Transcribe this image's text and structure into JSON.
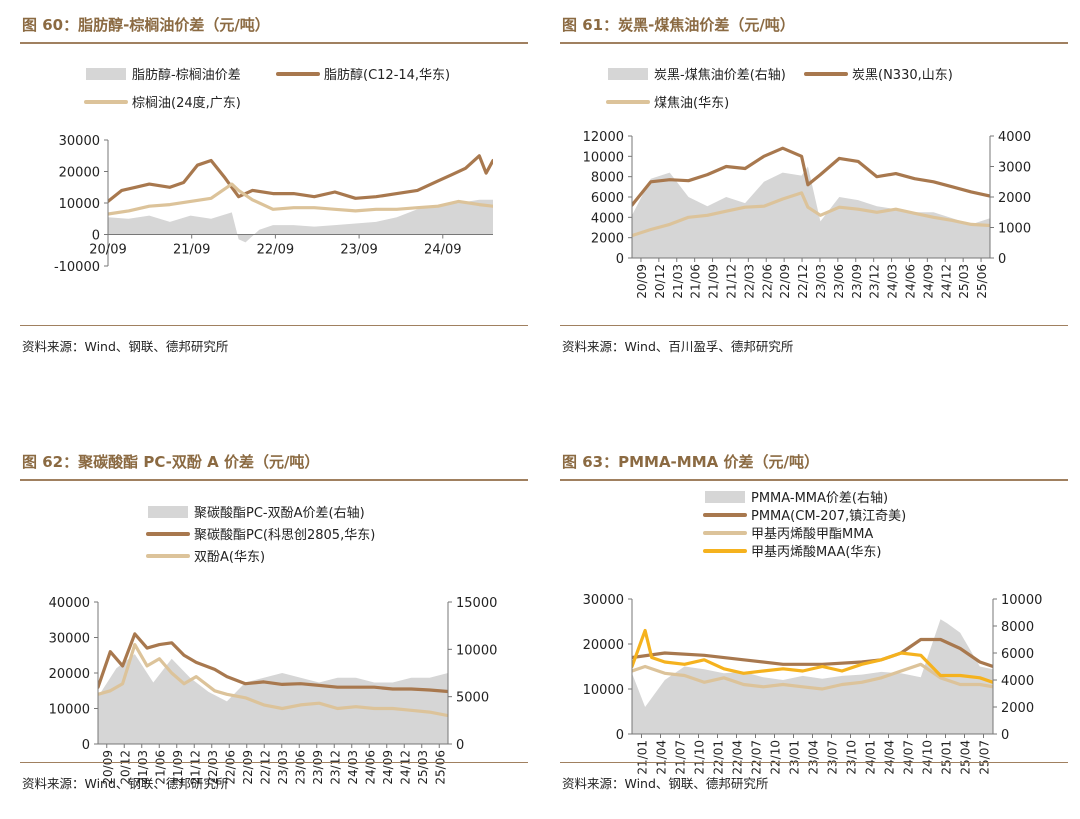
{
  "colors": {
    "title": "#8b6a42",
    "spread": "#d6d6d6",
    "brown": "#a8784e",
    "tan": "#dcc39a",
    "yellow": "#f5b21e"
  },
  "chart_data": [
    {
      "id": "p60",
      "type": "line",
      "title": "图 60：脂肪醇-棕榈油价差（元/吨）",
      "source": "资料来源：Wind、钢联、德邦研究所",
      "x_ticks": [
        "20/09",
        "21/09",
        "22/09",
        "23/09",
        "24/09"
      ],
      "x_range": [
        "2020-09",
        "2025-05"
      ],
      "ylim": [
        -10000,
        30000
      ],
      "y_ticks": [
        "30000",
        "20000",
        "10000",
        "0",
        "-10000"
      ],
      "x_labels_rotated": false,
      "legend_rows": [
        [
          0,
          1
        ],
        [
          2
        ]
      ],
      "series": [
        {
          "name": "脂肪醇-棕榈油价差",
          "kind": "area",
          "axis": "left",
          "color": "#d6d6d6",
          "x": [
            "2020-09",
            "2020-12",
            "2021-03",
            "2021-06",
            "2021-09",
            "2021-12",
            "2022-03",
            "2022-04",
            "2022-05",
            "2022-07",
            "2022-09",
            "2022-12",
            "2023-03",
            "2023-06",
            "2023-09",
            "2023-12",
            "2024-03",
            "2024-06",
            "2024-09",
            "2024-12",
            "2025-03",
            "2025-05"
          ],
          "values": [
            5500,
            5000,
            6000,
            4000,
            6000,
            5000,
            7000,
            -1500,
            -2500,
            1500,
            3000,
            3000,
            2500,
            3000,
            3500,
            4000,
            5500,
            8000,
            9000,
            10000,
            11000,
            11000
          ]
        },
        {
          "name": "脂肪醇(C12-14,华东)",
          "kind": "line",
          "axis": "left",
          "color": "#a8784e",
          "x": [
            "2020-09",
            "2020-11",
            "2021-01",
            "2021-03",
            "2021-06",
            "2021-08",
            "2021-10",
            "2021-12",
            "2022-02",
            "2022-04",
            "2022-06",
            "2022-09",
            "2022-12",
            "2023-03",
            "2023-06",
            "2023-09",
            "2023-12",
            "2024-03",
            "2024-06",
            "2024-09",
            "2024-11",
            "2025-01",
            "2025-03",
            "2025-04",
            "2025-05"
          ],
          "values": [
            10500,
            14000,
            15000,
            16000,
            15000,
            16500,
            22000,
            23500,
            18000,
            12000,
            14000,
            13000,
            13000,
            12000,
            13500,
            11500,
            12000,
            13000,
            14000,
            17000,
            19000,
            21000,
            25000,
            19500,
            23500
          ]
        },
        {
          "name": "棕榈油(24度,广东)",
          "kind": "line",
          "axis": "left",
          "color": "#dcc39a",
          "x": [
            "2020-09",
            "2020-12",
            "2021-03",
            "2021-06",
            "2021-09",
            "2021-12",
            "2022-03",
            "2022-04",
            "2022-06",
            "2022-09",
            "2022-12",
            "2023-03",
            "2023-06",
            "2023-09",
            "2023-12",
            "2024-03",
            "2024-06",
            "2024-09",
            "2024-12",
            "2025-03",
            "2025-05"
          ],
          "values": [
            6500,
            7500,
            9000,
            9500,
            10500,
            11500,
            16000,
            14000,
            11000,
            8000,
            8500,
            8500,
            8000,
            7500,
            8000,
            8000,
            8500,
            9000,
            10500,
            9500,
            9000
          ]
        }
      ]
    },
    {
      "id": "p61",
      "type": "line",
      "title": "图 61：炭黑-煤焦油价差（元/吨）",
      "source": "资料来源：Wind、百川盈孚、德邦研究所",
      "x_ticks": [
        "20/09",
        "20/12",
        "21/03",
        "21/06",
        "21/09",
        "21/12",
        "22/03",
        "22/06",
        "22/09",
        "22/12",
        "23/03",
        "23/06",
        "23/09",
        "23/12",
        "24/03",
        "24/06",
        "24/09",
        "24/12",
        "25/03",
        "25/06"
      ],
      "x_range": [
        "2020-09",
        "2025-06"
      ],
      "ylim": [
        0,
        12000
      ],
      "y_ticks": [
        "12000",
        "10000",
        "8000",
        "6000",
        "4000",
        "2000",
        "0"
      ],
      "y2lim": [
        0,
        4000
      ],
      "y2_ticks": [
        "4000",
        "3000",
        "2000",
        "1000",
        "0"
      ],
      "x_labels_rotated": true,
      "legend_rows": [
        [
          0,
          1
        ],
        [
          2
        ]
      ],
      "series": [
        {
          "name": "炭黑-煤焦油价差(右轴)",
          "kind": "area",
          "axis": "right",
          "color": "#d6d6d6",
          "x": [
            "2020-09",
            "2020-12",
            "2021-03",
            "2021-06",
            "2021-09",
            "2021-12",
            "2022-03",
            "2022-06",
            "2022-09",
            "2022-12",
            "2023-01",
            "2023-03",
            "2023-06",
            "2023-09",
            "2023-12",
            "2024-03",
            "2024-06",
            "2024-09",
            "2024-12",
            "2025-03",
            "2025-06"
          ],
          "values": [
            1400,
            2600,
            2800,
            2000,
            1700,
            2000,
            1800,
            2500,
            2800,
            2700,
            3000,
            1200,
            2000,
            1900,
            1700,
            1600,
            1500,
            1500,
            1300,
            1100,
            1300
          ]
        },
        {
          "name": "炭黑(N330,山东)",
          "kind": "line",
          "axis": "left",
          "color": "#a8784e",
          "x": [
            "2020-09",
            "2020-12",
            "2021-03",
            "2021-06",
            "2021-09",
            "2021-12",
            "2022-03",
            "2022-06",
            "2022-09",
            "2022-12",
            "2023-01",
            "2023-03",
            "2023-06",
            "2023-09",
            "2023-12",
            "2024-03",
            "2024-06",
            "2024-09",
            "2024-12",
            "2025-03",
            "2025-06"
          ],
          "values": [
            5200,
            7500,
            7700,
            7600,
            8200,
            9000,
            8800,
            10000,
            10800,
            10000,
            7200,
            8200,
            9800,
            9500,
            8000,
            8300,
            7800,
            7500,
            7000,
            6500,
            6100
          ]
        },
        {
          "name": "煤焦油(华东)",
          "kind": "line",
          "axis": "left",
          "color": "#dcc39a",
          "x": [
            "2020-09",
            "2020-12",
            "2021-03",
            "2021-06",
            "2021-09",
            "2021-12",
            "2022-03",
            "2022-06",
            "2022-09",
            "2022-12",
            "2023-01",
            "2023-03",
            "2023-06",
            "2023-09",
            "2023-12",
            "2024-03",
            "2024-06",
            "2024-09",
            "2024-12",
            "2025-03",
            "2025-06"
          ],
          "values": [
            2200,
            2800,
            3300,
            4000,
            4200,
            4600,
            5000,
            5100,
            5800,
            6400,
            5000,
            4200,
            5000,
            4800,
            4500,
            4800,
            4400,
            4000,
            3700,
            3300,
            3200
          ]
        }
      ]
    },
    {
      "id": "p62",
      "type": "line",
      "title": "图 62：聚碳酸酯 PC-双酚 A 价差（元/吨）",
      "source": "资料来源：Wind、钢联、德邦研究所",
      "x_ticks": [
        "20/09",
        "20/12",
        "21/03",
        "21/06",
        "21/09",
        "21/12",
        "22/03",
        "22/06",
        "22/09",
        "22/12",
        "23/03",
        "23/06",
        "23/09",
        "23/12",
        "24/03",
        "24/06",
        "24/09",
        "24/12",
        "25/03",
        "25/06"
      ],
      "x_range": [
        "2020-09",
        "2025-06"
      ],
      "ylim": [
        0,
        40000
      ],
      "y_ticks": [
        "40000",
        "30000",
        "20000",
        "10000",
        "0"
      ],
      "y2lim": [
        0,
        15000
      ],
      "y2_ticks": [
        "15000",
        "10000",
        "5000",
        "0"
      ],
      "x_labels_rotated": true,
      "legend_rows": [
        [
          0
        ],
        [
          1
        ],
        [
          2
        ]
      ],
      "series": [
        {
          "name": "聚碳酸酯PC-双酚A价差(右轴)",
          "kind": "area",
          "axis": "right",
          "color": "#d6d6d6",
          "x": [
            "2020-09",
            "2020-12",
            "2021-03",
            "2021-06",
            "2021-09",
            "2021-12",
            "2022-03",
            "2022-06",
            "2022-09",
            "2022-12",
            "2023-03",
            "2023-06",
            "2023-09",
            "2023-12",
            "2024-03",
            "2024-06",
            "2024-09",
            "2024-12",
            "2025-03",
            "2025-06"
          ],
          "values": [
            5000,
            8000,
            9500,
            6500,
            9000,
            7000,
            5500,
            4500,
            6500,
            7000,
            7500,
            7000,
            6500,
            7000,
            7000,
            6500,
            6500,
            7000,
            7000,
            7500
          ]
        },
        {
          "name": "聚碳酸酯PC(科思创2805,华东)",
          "kind": "line",
          "axis": "left",
          "color": "#a8784e",
          "x": [
            "2020-09",
            "2020-11",
            "2021-01",
            "2021-03",
            "2021-05",
            "2021-07",
            "2021-09",
            "2021-11",
            "2022-01",
            "2022-04",
            "2022-06",
            "2022-09",
            "2022-12",
            "2023-03",
            "2023-06",
            "2023-09",
            "2023-12",
            "2024-03",
            "2024-06",
            "2024-09",
            "2024-12",
            "2025-03",
            "2025-06"
          ],
          "values": [
            16000,
            26000,
            22000,
            31000,
            27000,
            28000,
            28500,
            25000,
            23000,
            21000,
            19000,
            17000,
            17500,
            16800,
            17000,
            16500,
            16000,
            16000,
            16000,
            15500,
            15500,
            15200,
            14800
          ]
        },
        {
          "name": "双酚A(华东)",
          "kind": "line",
          "axis": "left",
          "color": "#dcc39a",
          "x": [
            "2020-09",
            "2020-11",
            "2021-01",
            "2021-03",
            "2021-05",
            "2021-07",
            "2021-09",
            "2021-11",
            "2022-01",
            "2022-04",
            "2022-06",
            "2022-09",
            "2022-12",
            "2023-03",
            "2023-06",
            "2023-09",
            "2023-12",
            "2024-03",
            "2024-06",
            "2024-09",
            "2024-12",
            "2025-03",
            "2025-06"
          ],
          "values": [
            14000,
            15000,
            17000,
            28000,
            22000,
            24000,
            20000,
            17000,
            19000,
            15000,
            14000,
            13000,
            11000,
            10000,
            11000,
            11500,
            10000,
            10500,
            10000,
            10000,
            9500,
            9000,
            8000
          ]
        }
      ]
    },
    {
      "id": "p63",
      "type": "line",
      "title": "图 63：PMMA-MMA 价差（元/吨）",
      "source": "资料来源：Wind、钢联、德邦研究所",
      "x_ticks": [
        "21/01",
        "21/04",
        "21/07",
        "21/10",
        "22/01",
        "22/04",
        "22/07",
        "22/10",
        "23/01",
        "23/04",
        "23/07",
        "23/10",
        "24/01",
        "24/04",
        "24/07",
        "24/10",
        "25/01",
        "25/04",
        "25/07"
      ],
      "x_range": [
        "2021-01",
        "2025-08"
      ],
      "ylim": [
        0,
        30000
      ],
      "y_ticks": [
        "30000",
        "20000",
        "10000",
        "0"
      ],
      "y2lim": [
        0,
        10000
      ],
      "y2_ticks": [
        "10000",
        "8000",
        "6000",
        "4000",
        "2000",
        "0"
      ],
      "x_labels_rotated": true,
      "legend_rows": [
        [
          0
        ],
        [
          1
        ],
        [
          2
        ],
        [
          3
        ]
      ],
      "series": [
        {
          "name": "PMMA-MMA价差(右轴)",
          "kind": "area",
          "axis": "right",
          "color": "#d6d6d6",
          "x": [
            "2021-01",
            "2021-03",
            "2021-06",
            "2021-09",
            "2021-12",
            "2022-03",
            "2022-06",
            "2022-09",
            "2022-12",
            "2023-03",
            "2023-06",
            "2023-09",
            "2023-12",
            "2024-03",
            "2024-06",
            "2024-09",
            "2024-12",
            "2025-01",
            "2025-03",
            "2025-06",
            "2025-08"
          ],
          "values": [
            4500,
            2000,
            4000,
            5000,
            4800,
            4500,
            4600,
            4200,
            4000,
            4300,
            4100,
            4300,
            4400,
            4600,
            4500,
            4200,
            8500,
            8200,
            7500,
            5000,
            4800
          ]
        },
        {
          "name": "PMMA(CM-207,镇江奇美)",
          "kind": "line",
          "axis": "left",
          "color": "#a8784e",
          "x": [
            "2021-01",
            "2021-06",
            "2021-12",
            "2022-06",
            "2022-12",
            "2023-06",
            "2023-12",
            "2024-03",
            "2024-06",
            "2024-09",
            "2024-12",
            "2025-03",
            "2025-06",
            "2025-08"
          ],
          "values": [
            17000,
            18000,
            17500,
            16500,
            15500,
            15500,
            16000,
            16500,
            18000,
            21000,
            21000,
            19000,
            16000,
            15000
          ]
        },
        {
          "name": "甲基丙烯酸甲酯MMA",
          "kind": "line",
          "axis": "left",
          "color": "#dcc39a",
          "x": [
            "2021-01",
            "2021-03",
            "2021-06",
            "2021-09",
            "2021-12",
            "2022-03",
            "2022-06",
            "2022-09",
            "2022-12",
            "2023-03",
            "2023-06",
            "2023-09",
            "2023-12",
            "2024-03",
            "2024-06",
            "2024-09",
            "2024-12",
            "2025-03",
            "2025-06",
            "2025-08"
          ],
          "values": [
            14000,
            15000,
            13500,
            13000,
            11500,
            12500,
            11000,
            10500,
            11000,
            10500,
            10000,
            11000,
            11500,
            12500,
            14000,
            15500,
            12500,
            11000,
            11000,
            10500
          ]
        },
        {
          "name": "甲基丙烯酸MAA(华东)",
          "kind": "line",
          "axis": "left",
          "color": "#f5b21e",
          "x": [
            "2021-01",
            "2021-03",
            "2021-04",
            "2021-06",
            "2021-09",
            "2021-12",
            "2022-03",
            "2022-06",
            "2022-09",
            "2022-12",
            "2023-03",
            "2023-06",
            "2023-09",
            "2023-12",
            "2024-03",
            "2024-06",
            "2024-09",
            "2024-12",
            "2025-03",
            "2025-06",
            "2025-08"
          ],
          "values": [
            15000,
            23000,
            17000,
            16000,
            15500,
            16500,
            14500,
            13500,
            14000,
            14500,
            14000,
            15000,
            14000,
            15500,
            16500,
            18000,
            17500,
            13000,
            13000,
            12500,
            11500
          ]
        }
      ]
    }
  ]
}
